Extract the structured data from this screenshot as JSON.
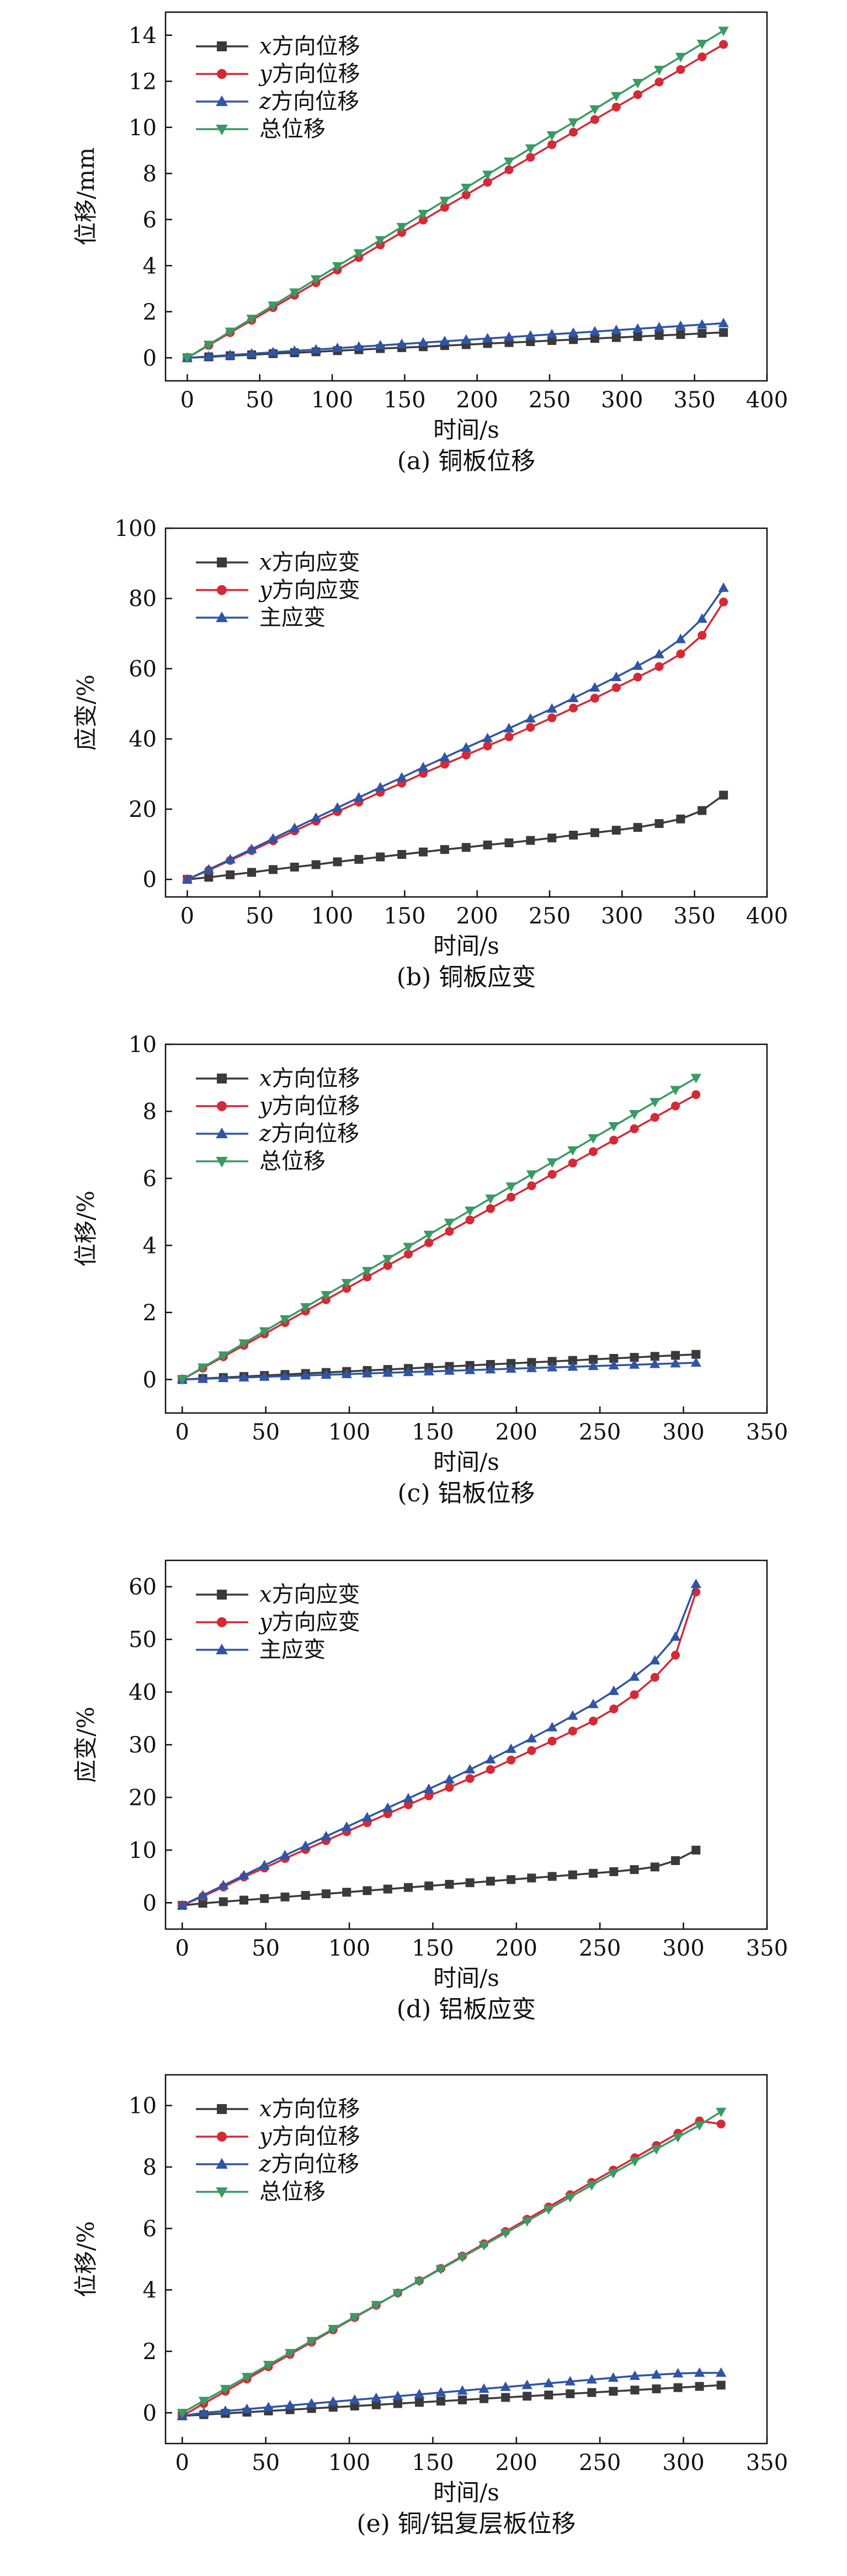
{
  "chart_data": [
    {
      "type": "line",
      "caption": "(a) 铜板位移",
      "xlabel": "时间/s",
      "ylabel": "位移/mm",
      "xlim": [
        -15,
        400
      ],
      "ylim": [
        -1,
        15
      ],
      "xticks": [
        0,
        50,
        100,
        150,
        200,
        250,
        300,
        350,
        400
      ],
      "yticks": [
        0,
        2,
        4,
        6,
        8,
        10,
        12,
        14
      ],
      "x": [
        0,
        14.8,
        29.6,
        44.4,
        59.2,
        74,
        88.8,
        103.6,
        118.4,
        133.2,
        148,
        162.8,
        177.6,
        192.4,
        207.2,
        222,
        236.8,
        251.6,
        266.4,
        281.2,
        296,
        310.8,
        325.6,
        340.4,
        355.2,
        370
      ],
      "legend_position": "top-left",
      "series": [
        {
          "name": "x方向位移",
          "color": "#3a3a3a",
          "marker": "square",
          "values": [
            0,
            0.04,
            0.09,
            0.13,
            0.18,
            0.22,
            0.26,
            0.31,
            0.35,
            0.4,
            0.44,
            0.48,
            0.53,
            0.57,
            0.62,
            0.66,
            0.7,
            0.75,
            0.79,
            0.84,
            0.88,
            0.92,
            0.97,
            1.01,
            1.06,
            1.1
          ]
        },
        {
          "name": "y方向位移",
          "color": "#d42a36",
          "marker": "circle",
          "values": [
            0,
            0.54,
            1.09,
            1.63,
            2.18,
            2.72,
            3.26,
            3.81,
            4.35,
            4.9,
            5.44,
            5.98,
            6.53,
            7.07,
            7.62,
            8.16,
            8.7,
            9.25,
            9.79,
            10.34,
            10.88,
            11.42,
            11.97,
            12.51,
            13.06,
            13.6
          ]
        },
        {
          "name": "z方向位移",
          "color": "#2f55a4",
          "marker": "triangle-up",
          "values": [
            0,
            0.06,
            0.12,
            0.18,
            0.24,
            0.3,
            0.36,
            0.42,
            0.48,
            0.54,
            0.6,
            0.66,
            0.72,
            0.78,
            0.84,
            0.9,
            0.96,
            1.02,
            1.08,
            1.14,
            1.2,
            1.26,
            1.32,
            1.38,
            1.44,
            1.5
          ]
        },
        {
          "name": "总位移",
          "color": "#3a9a64",
          "marker": "triangle-down",
          "values": [
            0,
            0.57,
            1.14,
            1.7,
            2.27,
            2.84,
            3.41,
            3.98,
            4.54,
            5.11,
            5.68,
            6.25,
            6.82,
            7.38,
            7.95,
            8.52,
            9.09,
            9.66,
            10.22,
            10.79,
            11.36,
            11.93,
            12.5,
            13.06,
            13.63,
            14.2
          ]
        }
      ]
    },
    {
      "type": "line",
      "caption": "(b) 铜板应变",
      "xlabel": "时间/s",
      "ylabel": "应变/%",
      "xlim": [
        -15,
        400
      ],
      "ylim": [
        -5,
        100
      ],
      "xticks": [
        0,
        50,
        100,
        150,
        200,
        250,
        300,
        350,
        400
      ],
      "yticks": [
        0,
        20,
        40,
        60,
        80,
        100
      ],
      "x": [
        0,
        14.8,
        29.6,
        44.4,
        59.2,
        74,
        88.8,
        103.6,
        118.4,
        133.2,
        148,
        162.8,
        177.6,
        192.4,
        207.2,
        222,
        236.8,
        251.6,
        266.4,
        281.2,
        296,
        310.8,
        325.6,
        340.4,
        355.2,
        370
      ],
      "legend_position": "top-left",
      "series": [
        {
          "name": "x方向应变",
          "color": "#3a3a3a",
          "marker": "square",
          "values": [
            0,
            0.6,
            1.3,
            2.0,
            2.8,
            3.5,
            4.2,
            5.0,
            5.7,
            6.4,
            7.1,
            7.8,
            8.5,
            9.1,
            9.8,
            10.4,
            11.1,
            11.8,
            12.6,
            13.3,
            14.0,
            14.8,
            15.9,
            17.2,
            19.6,
            24.0
          ]
        },
        {
          "name": "y方向应变",
          "color": "#d42a36",
          "marker": "circle",
          "values": [
            0,
            2.6,
            5.4,
            8.2,
            11.0,
            13.8,
            16.6,
            19.3,
            22.0,
            24.8,
            27.4,
            30.2,
            32.8,
            35.4,
            38.0,
            40.6,
            43.3,
            46.0,
            48.8,
            51.6,
            54.6,
            57.6,
            60.6,
            64.2,
            69.5,
            79.0
          ]
        },
        {
          "name": "主应变",
          "color": "#2f55a4",
          "marker": "triangle-up",
          "values": [
            0,
            2.8,
            5.7,
            8.6,
            11.6,
            14.6,
            17.5,
            20.4,
            23.3,
            26.2,
            29.0,
            31.9,
            34.7,
            37.5,
            40.2,
            43.0,
            45.8,
            48.6,
            51.6,
            54.6,
            57.6,
            60.8,
            64.1,
            68.4,
            74.2,
            83.0
          ]
        }
      ]
    },
    {
      "type": "line",
      "caption": "(c) 铝板位移",
      "xlabel": "时间/s",
      "ylabel": "位移/%",
      "xlim": [
        -10,
        350
      ],
      "ylim": [
        -1,
        10
      ],
      "xticks": [
        0,
        50,
        100,
        150,
        200,
        250,
        300,
        350
      ],
      "yticks": [
        0,
        2,
        4,
        6,
        8,
        10
      ],
      "x": [
        0,
        12.3,
        24.6,
        36.9,
        49.2,
        61.5,
        73.8,
        86.1,
        98.4,
        110.7,
        123,
        135.3,
        147.6,
        159.9,
        172.2,
        184.5,
        196.8,
        209.1,
        221.4,
        233.7,
        246,
        258.3,
        270.6,
        282.9,
        295.2,
        307.5
      ],
      "legend_position": "top-left",
      "series": [
        {
          "name": "x方向位移",
          "color": "#3a3a3a",
          "marker": "square",
          "values": [
            0,
            0.03,
            0.06,
            0.09,
            0.12,
            0.15,
            0.18,
            0.21,
            0.24,
            0.27,
            0.3,
            0.33,
            0.36,
            0.39,
            0.42,
            0.45,
            0.48,
            0.51,
            0.54,
            0.57,
            0.6,
            0.63,
            0.66,
            0.69,
            0.72,
            0.75
          ]
        },
        {
          "name": "y方向位移",
          "color": "#d42a36",
          "marker": "circle",
          "values": [
            0,
            0.34,
            0.68,
            1.02,
            1.36,
            1.7,
            2.04,
            2.38,
            2.72,
            3.06,
            3.4,
            3.74,
            4.08,
            4.42,
            4.76,
            5.1,
            5.44,
            5.78,
            6.12,
            6.46,
            6.8,
            7.14,
            7.48,
            7.82,
            8.16,
            8.5
          ]
        },
        {
          "name": "z方向位移",
          "color": "#2f55a4",
          "marker": "triangle-up",
          "values": [
            0,
            0.02,
            0.04,
            0.06,
            0.08,
            0.1,
            0.12,
            0.14,
            0.16,
            0.18,
            0.2,
            0.22,
            0.24,
            0.26,
            0.28,
            0.3,
            0.32,
            0.34,
            0.36,
            0.38,
            0.4,
            0.42,
            0.44,
            0.46,
            0.48,
            0.5
          ]
        },
        {
          "name": "总位移",
          "color": "#3a9a64",
          "marker": "triangle-down",
          "values": [
            0,
            0.36,
            0.72,
            1.08,
            1.44,
            1.8,
            2.16,
            2.52,
            2.88,
            3.24,
            3.6,
            3.96,
            4.32,
            4.68,
            5.04,
            5.4,
            5.76,
            6.12,
            6.48,
            6.84,
            7.2,
            7.56,
            7.92,
            8.28,
            8.64,
            9.0
          ]
        }
      ]
    },
    {
      "type": "line",
      "caption": "(d) 铝板应变",
      "xlabel": "时间/s",
      "ylabel": "应变/%",
      "xlim": [
        -10,
        350
      ],
      "ylim": [
        -5,
        65
      ],
      "xticks": [
        0,
        50,
        100,
        150,
        200,
        250,
        300,
        350
      ],
      "yticks": [
        0,
        10,
        20,
        30,
        40,
        50,
        60
      ],
      "x": [
        0,
        12.3,
        24.6,
        36.9,
        49.2,
        61.5,
        73.8,
        86.1,
        98.4,
        110.7,
        123,
        135.3,
        147.6,
        159.9,
        172.2,
        184.5,
        196.8,
        209.1,
        221.4,
        233.7,
        246,
        258.3,
        270.6,
        282.9,
        295.2,
        307.5
      ],
      "legend_position": "top-left",
      "series": [
        {
          "name": "x方向应变",
          "color": "#3a3a3a",
          "marker": "square",
          "values": [
            -0.5,
            -0.1,
            0.2,
            0.5,
            0.8,
            1.1,
            1.4,
            1.7,
            2.0,
            2.3,
            2.6,
            2.9,
            3.2,
            3.5,
            3.8,
            4.1,
            4.4,
            4.7,
            5.0,
            5.3,
            5.6,
            5.9,
            6.3,
            6.8,
            8.0,
            10.0
          ]
        },
        {
          "name": "y方向应变",
          "color": "#d42a36",
          "marker": "circle",
          "values": [
            -0.5,
            1.2,
            3.0,
            4.9,
            6.6,
            8.4,
            10.1,
            11.8,
            13.5,
            15.2,
            16.9,
            18.6,
            20.3,
            21.9,
            23.6,
            25.3,
            27.1,
            28.9,
            30.7,
            32.6,
            34.5,
            36.8,
            39.5,
            42.8,
            47.0,
            59.0
          ]
        },
        {
          "name": "主应变",
          "color": "#2f55a4",
          "marker": "triangle-up",
          "values": [
            -0.5,
            1.4,
            3.3,
            5.2,
            7.1,
            9.0,
            10.8,
            12.6,
            14.4,
            16.2,
            18.0,
            19.8,
            21.6,
            23.4,
            25.3,
            27.2,
            29.2,
            31.2,
            33.3,
            35.5,
            37.7,
            40.2,
            42.9,
            46.0,
            50.5,
            60.5
          ]
        }
      ]
    },
    {
      "type": "line",
      "caption": "(e) 铜/铝复层板位移",
      "xlabel": "时间/s",
      "ylabel": "位移/%",
      "xlim": [
        -10,
        350
      ],
      "ylim": [
        -1,
        11
      ],
      "xticks": [
        0,
        50,
        100,
        150,
        200,
        250,
        300,
        350
      ],
      "yticks": [
        0,
        2,
        4,
        6,
        8,
        10
      ],
      "x": [
        0,
        12.9,
        25.8,
        38.7,
        51.6,
        64.5,
        77.4,
        90.3,
        103.2,
        116.1,
        129,
        141.9,
        154.8,
        167.7,
        180.6,
        193.5,
        206.4,
        219.3,
        232.2,
        245.1,
        258,
        270.9,
        283.8,
        296.7,
        309.6,
        322.5
      ],
      "legend_position": "top-left",
      "series": [
        {
          "name": "x方向位移",
          "color": "#3a3a3a",
          "marker": "square",
          "values": [
            -0.1,
            -0.06,
            -0.02,
            0.02,
            0.06,
            0.1,
            0.14,
            0.18,
            0.22,
            0.26,
            0.3,
            0.34,
            0.38,
            0.42,
            0.46,
            0.5,
            0.54,
            0.58,
            0.62,
            0.66,
            0.7,
            0.74,
            0.78,
            0.82,
            0.86,
            0.9
          ]
        },
        {
          "name": "y方向位移",
          "color": "#d42a36",
          "marker": "circle",
          "values": [
            -0.1,
            0.3,
            0.7,
            1.1,
            1.5,
            1.9,
            2.3,
            2.7,
            3.1,
            3.5,
            3.9,
            4.3,
            4.7,
            5.1,
            5.5,
            5.9,
            6.3,
            6.7,
            7.1,
            7.5,
            7.9,
            8.3,
            8.7,
            9.1,
            9.5,
            9.4
          ]
        },
        {
          "name": "z方向位移",
          "color": "#2f55a4",
          "marker": "triangle-up",
          "values": [
            -0.1,
            0.0,
            0.06,
            0.12,
            0.18,
            0.24,
            0.3,
            0.36,
            0.42,
            0.48,
            0.54,
            0.6,
            0.66,
            0.72,
            0.78,
            0.84,
            0.9,
            0.96,
            1.02,
            1.08,
            1.14,
            1.2,
            1.24,
            1.28,
            1.3,
            1.3
          ]
        },
        {
          "name": "总位移",
          "color": "#3a9a64",
          "marker": "triangle-down",
          "values": [
            0,
            0.39,
            0.78,
            1.17,
            1.56,
            1.95,
            2.34,
            2.73,
            3.12,
            3.51,
            3.9,
            4.29,
            4.68,
            5.07,
            5.46,
            5.85,
            6.24,
            6.63,
            7.02,
            7.41,
            7.8,
            8.19,
            8.58,
            8.97,
            9.36,
            9.8
          ]
        }
      ]
    }
  ]
}
